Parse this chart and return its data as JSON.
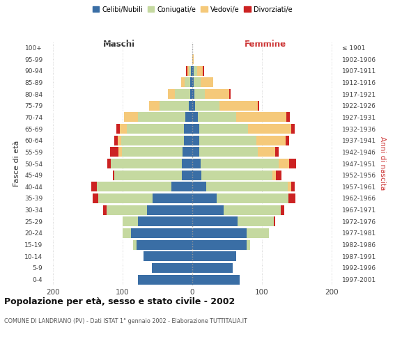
{
  "age_groups": [
    "0-4",
    "5-9",
    "10-14",
    "15-19",
    "20-24",
    "25-29",
    "30-34",
    "35-39",
    "40-44",
    "45-49",
    "50-54",
    "55-59",
    "60-64",
    "65-69",
    "70-74",
    "75-79",
    "80-84",
    "85-89",
    "90-94",
    "95-99",
    "100+"
  ],
  "birth_years": [
    "1997-2001",
    "1992-1996",
    "1987-1991",
    "1982-1986",
    "1977-1981",
    "1972-1976",
    "1967-1971",
    "1962-1966",
    "1957-1961",
    "1952-1956",
    "1947-1951",
    "1942-1946",
    "1937-1941",
    "1932-1936",
    "1927-1931",
    "1922-1926",
    "1917-1921",
    "1912-1916",
    "1907-1911",
    "1902-1906",
    "≤ 1901"
  ],
  "male_celibi": [
    78,
    58,
    70,
    80,
    88,
    78,
    65,
    57,
    30,
    15,
    15,
    14,
    12,
    12,
    10,
    5,
    3,
    3,
    2,
    0,
    0
  ],
  "male_coniugati": [
    0,
    0,
    0,
    5,
    12,
    22,
    58,
    78,
    107,
    97,
    102,
    87,
    90,
    82,
    68,
    42,
    22,
    8,
    3,
    0,
    0
  ],
  "male_vedovi": [
    0,
    0,
    0,
    0,
    0,
    0,
    0,
    0,
    0,
    0,
    0,
    5,
    5,
    10,
    20,
    15,
    10,
    5,
    2,
    0,
    0
  ],
  "male_divorziati": [
    0,
    0,
    0,
    0,
    0,
    0,
    5,
    8,
    8,
    2,
    5,
    12,
    5,
    5,
    0,
    0,
    0,
    0,
    2,
    0,
    0
  ],
  "female_nubili": [
    68,
    58,
    63,
    78,
    78,
    65,
    45,
    35,
    20,
    13,
    12,
    10,
    10,
    10,
    8,
    4,
    3,
    2,
    2,
    0,
    0
  ],
  "female_coniugate": [
    0,
    0,
    0,
    5,
    32,
    52,
    82,
    103,
    117,
    102,
    112,
    84,
    82,
    70,
    55,
    35,
    15,
    10,
    5,
    0,
    0
  ],
  "female_vedove": [
    0,
    0,
    0,
    0,
    0,
    0,
    0,
    0,
    5,
    5,
    15,
    25,
    42,
    62,
    72,
    55,
    35,
    18,
    8,
    2,
    0
  ],
  "female_divorziate": [
    0,
    0,
    0,
    0,
    0,
    2,
    5,
    10,
    5,
    8,
    10,
    5,
    5,
    5,
    5,
    2,
    2,
    0,
    2,
    0,
    0
  ],
  "color_celibi": "#3a6ea5",
  "color_coniugati": "#c5d9a0",
  "color_vedovi": "#f5c97a",
  "color_divorziati": "#cc2222",
  "xlim": 210,
  "xtick_positions": [
    -200,
    -100,
    0,
    100,
    200
  ],
  "title": "Popolazione per età, sesso e stato civile - 2002",
  "subtitle": "COMUNE DI LANDRIANO (PV) - Dati ISTAT 1° gennaio 2002 - Elaborazione TUTTITALIA.IT",
  "ylabel_left": "Fasce di età",
  "ylabel_right": "Anni di nascita",
  "maschi_label": "Maschi",
  "femmine_label": "Femmine",
  "legend_labels": [
    "Celibi/Nubili",
    "Coniugati/e",
    "Vedovi/e",
    "Divorziati/e"
  ],
  "bg_color": "#ffffff",
  "grid_color": "#cccccc",
  "femmine_color": "#cc3333",
  "maschi_color": "#333333"
}
